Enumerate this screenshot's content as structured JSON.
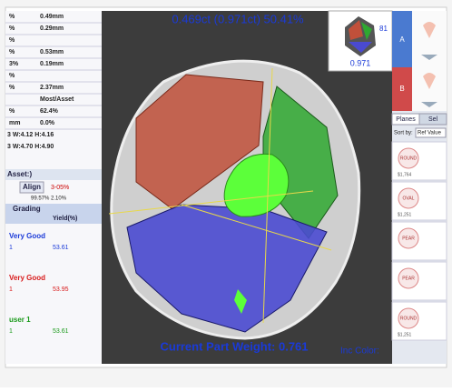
{
  "header": {
    "weight_summary": "0.469ct (0.971ct) 50.41%"
  },
  "footer": {
    "current_part_weight": "Current Part Weight: 0.761",
    "inc_color": "Inc Color:"
  },
  "thumbnail": {
    "label": "0.971",
    "side_label": "81"
  },
  "left_panel": {
    "rows": [
      [
        "%",
        "0.49mm"
      ],
      [
        "%",
        "0.29mm"
      ],
      [
        "%",
        ""
      ],
      [
        "%",
        "0.53mm"
      ],
      [
        "3%",
        "0.19mm"
      ],
      [
        "%",
        ""
      ],
      [
        "%",
        "2.37mm"
      ],
      [
        "",
        "Most/Asset"
      ],
      [
        "%",
        "62.4%"
      ],
      [
        "mm",
        "0.0%"
      ]
    ],
    "dims": [
      "3 W:4.12 H:4.16",
      "3 W:4.70 H:4.90"
    ],
    "asset": "Asset:)",
    "align": "Align",
    "align_value": "3-05%",
    "align_info": "99.57% 2.10%",
    "grading_title": "Grading",
    "yield_header": "Yield(%)",
    "results": [
      {
        "name": "Very Good",
        "id": "1",
        "yield": "53.61",
        "color": "#1a3ad8"
      },
      {
        "name": "Very Good",
        "id": "1",
        "yield": "53.95",
        "color": "#d81a1a"
      },
      {
        "name": "user 1",
        "id": "1",
        "yield": "53.61",
        "color": "#1a9a1a"
      }
    ]
  },
  "right_panel": {
    "tabs": [
      "A",
      "B"
    ],
    "list_tabs": [
      "Planes",
      "Sel"
    ],
    "sort_label": "Sort by:",
    "sort_value": "Ref Value",
    "items": [
      {
        "shape": "ROUND",
        "price": "$1,764"
      },
      {
        "shape": "OVAL",
        "price": "$1,251"
      },
      {
        "shape": "PEAR",
        "price": ""
      },
      {
        "shape": "PEAR",
        "price": ""
      },
      {
        "shape": "ROUND",
        "price": "$1,251"
      }
    ]
  }
}
